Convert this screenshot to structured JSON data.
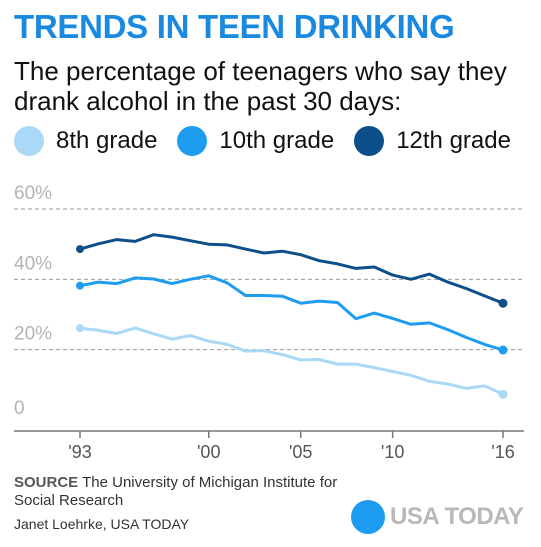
{
  "header": {
    "title": "TRENDS IN TEEN DRINKING",
    "subtitle": "The percentage of teenagers who say they drank alcohol in the past 30 days:"
  },
  "legend": [
    {
      "label": "8th grade",
      "color": "#a9d9f7"
    },
    {
      "label": "10th grade",
      "color": "#1e9cf0"
    },
    {
      "label": "12th grade",
      "color": "#0d4f8a"
    }
  ],
  "chart_data": {
    "type": "line",
    "title": "TRENDS IN TEEN DRINKING",
    "subtitle": "The percentage of teenagers who say they drank alcohol in the past 30 days:",
    "xlabel": "",
    "ylabel": "",
    "x": [
      1993,
      1994,
      1995,
      1996,
      1997,
      1998,
      1999,
      2000,
      2001,
      2002,
      2003,
      2004,
      2005,
      2006,
      2007,
      2008,
      2009,
      2010,
      2011,
      2012,
      2013,
      2014,
      2015,
      2016
    ],
    "xticks": [
      {
        "value": 1993,
        "label": "'93"
      },
      {
        "value": 2000,
        "label": "'00"
      },
      {
        "value": 2005,
        "label": "'05"
      },
      {
        "value": 2010,
        "label": "'10"
      },
      {
        "value": 2016,
        "label": "'16"
      }
    ],
    "yticks": [
      {
        "value": 0,
        "label": "0"
      },
      {
        "value": 20,
        "label": "20%"
      },
      {
        "value": 40,
        "label": "40%"
      },
      {
        "value": 60,
        "label": "60%"
      }
    ],
    "ylim": [
      0,
      60
    ],
    "xlim": [
      1993,
      2016
    ],
    "grid": true,
    "legend_position": "top",
    "series": [
      {
        "name": "8th grade",
        "color": "#a9d9f7",
        "values": [
          26.1,
          25.5,
          24.6,
          26.2,
          24.5,
          23.0,
          24.0,
          22.4,
          21.5,
          19.6,
          19.7,
          18.6,
          17.1,
          17.2,
          15.9,
          15.9,
          14.9,
          13.8,
          12.7,
          11.0,
          10.2,
          9.0,
          9.7,
          7.3
        ]
      },
      {
        "name": "10th grade",
        "color": "#1e9cf0",
        "values": [
          38.2,
          39.2,
          38.8,
          40.4,
          40.1,
          38.8,
          40.0,
          41.0,
          39.0,
          35.4,
          35.4,
          35.2,
          33.2,
          33.8,
          33.4,
          28.8,
          30.4,
          28.9,
          27.2,
          27.6,
          25.7,
          23.5,
          21.5,
          19.9
        ]
      },
      {
        "name": "12th grade",
        "color": "#0d4f8a",
        "values": [
          48.6,
          50.1,
          51.3,
          50.8,
          52.7,
          52.0,
          51.0,
          50.0,
          49.8,
          48.6,
          47.5,
          48.0,
          47.0,
          45.3,
          44.4,
          43.1,
          43.5,
          41.2,
          40.0,
          41.5,
          39.2,
          37.4,
          35.3,
          33.2
        ]
      }
    ]
  },
  "footer": {
    "source_key": "SOURCE",
    "source_text": "The University of Michigan Institute for Social Research",
    "credit": "Janet Loehrke, USA TODAY",
    "logo_text": "USA TODAY",
    "logo_dot_color": "#1e9cf0"
  }
}
